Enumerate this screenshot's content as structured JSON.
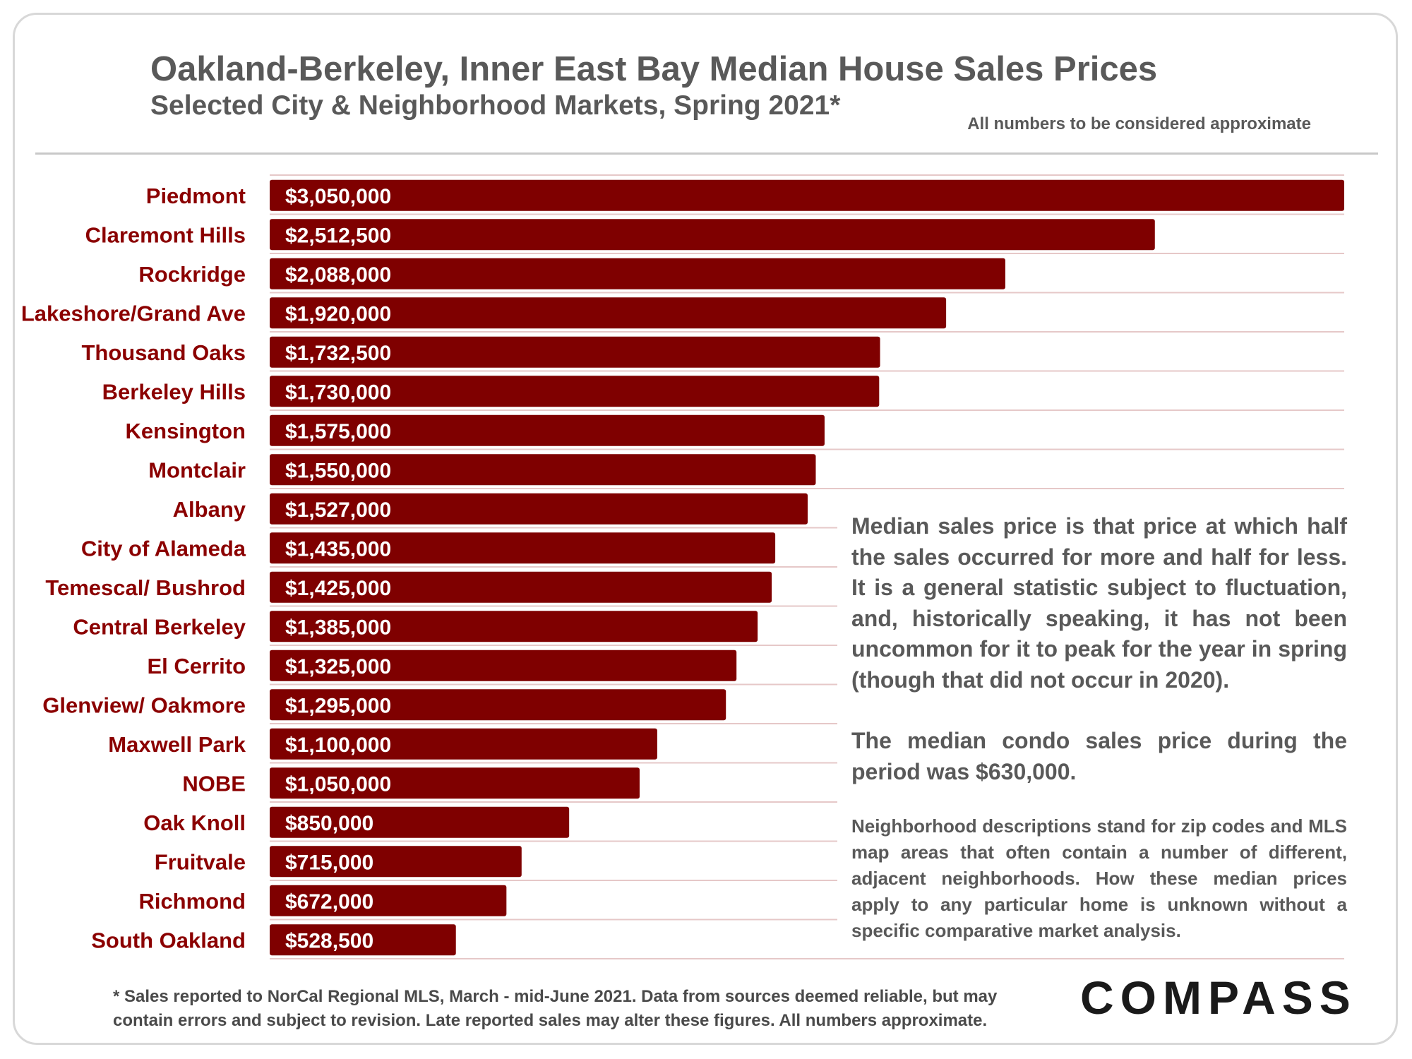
{
  "header": {
    "title": "Oakland-Berkeley, Inner East Bay Median House Sales Prices",
    "subtitle": "Selected City & Neighborhood Markets, Spring 2021*",
    "note": "All numbers to be considered approximate"
  },
  "chart_data": {
    "type": "bar",
    "orientation": "horizontal",
    "title": "Oakland-Berkeley, Inner East Bay Median House Sales Prices",
    "subtitle": "Selected City & Neighborhood Markets, Spring 2021*",
    "categories": [
      "Piedmont",
      "Claremont Hills",
      "Rockridge",
      "Lakeshore/Grand Ave",
      "Thousand Oaks",
      "Berkeley Hills",
      "Kensington",
      "Montclair",
      "Albany",
      "City of Alameda",
      "Temescal/ Bushrod",
      "Central Berkeley",
      "El Cerrito",
      "Glenview/ Oakmore",
      "Maxwell Park",
      "NOBE",
      "Oak Knoll",
      "Fruitvale",
      "Richmond",
      "South Oakland"
    ],
    "values": [
      3050000,
      2512500,
      2088000,
      1920000,
      1732500,
      1730000,
      1575000,
      1550000,
      1527000,
      1435000,
      1425000,
      1385000,
      1325000,
      1295000,
      1100000,
      1050000,
      850000,
      715000,
      672000,
      528500
    ],
    "value_labels": [
      "$3,050,000",
      "$2,512,500",
      "$2,088,000",
      "$1,920,000",
      "$1,732,500",
      "$1,730,000",
      "$1,575,000",
      "$1,550,000",
      "$1,527,000",
      "$1,435,000",
      "$1,425,000",
      "$1,385,000",
      "$1,325,000",
      "$1,295,000",
      "$1,100,000",
      "$1,050,000",
      "$850,000",
      "$715,000",
      "$672,000",
      "$528,500"
    ],
    "xlim": [
      0,
      3050000
    ],
    "bar_color": "#7f0000",
    "label_color": "#8b0000",
    "grid": "horizontal separators"
  },
  "description": {
    "p1": "Median sales price is that price at which half the sales occurred for more and half for less. It is a general statistic subject to fluctuation, and, historically speaking, it has not been uncommon for it to peak for the year in spring (though that did not occur in 2020).",
    "p2": "The median condo sales price during the period was $630,000.",
    "p3": "Neighborhood descriptions stand for zip codes and MLS map areas that often contain a number of different, adjacent neighborhoods. How these median prices apply to any particular home is unknown without a specific comparative market analysis."
  },
  "footnote": "* Sales reported to NorCal Regional MLS, March - mid-June 2021. Data from sources deemed reliable, but may contain errors and subject to revision. Late reported sales may alter these figures. All numbers approximate.",
  "logo": "COMPASS",
  "colors": {
    "text_gray": "#595959",
    "bar": "#7f0000",
    "category_label": "#8b0000"
  }
}
